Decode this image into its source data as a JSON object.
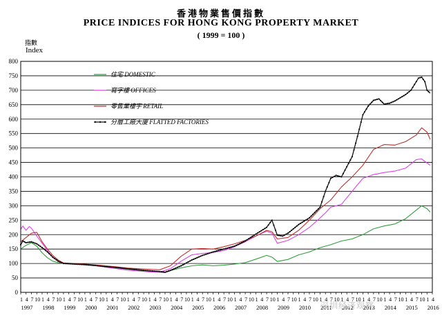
{
  "title_zh": "香港物業售價指數",
  "title_en": "PRICE INDICES FOR HONG KONG PROPERTY MARKET",
  "subtitle": "( 1999 = 100 )",
  "ylabel_zh": "指數",
  "ylabel_en": "Index",
  "watermark": "深圳经济观察",
  "chart_data": {
    "type": "line",
    "ylim": [
      0,
      800
    ],
    "yticks": [
      0,
      50,
      100,
      150,
      200,
      250,
      300,
      350,
      400,
      450,
      500,
      550,
      600,
      650,
      700,
      750,
      800
    ],
    "xlim": [
      1997.0,
      2016.25
    ],
    "years": [
      "1997",
      "1998",
      "1999",
      "2000",
      "2001",
      "2002",
      "2003",
      "2004",
      "2005",
      "2006",
      "2007",
      "2008",
      "2009",
      "2010",
      "2011",
      "2012",
      "2013",
      "2014",
      "2015",
      "2016"
    ],
    "quarter_labels": [
      "1",
      "4",
      "7",
      "10"
    ],
    "grid": true,
    "legend_position": "top-left",
    "series": [
      {
        "name": "住宅  DOMESTIC",
        "color": "#2e9e3a",
        "marker": "none",
        "x": [
          1997.0,
          1997.25,
          1997.5,
          1997.75,
          1998.0,
          1998.25,
          1998.5,
          1998.75,
          1999.0,
          1999.5,
          2000.0,
          2000.5,
          2001.0,
          2001.5,
          2002.0,
          2002.5,
          2003.0,
          2003.5,
          2003.75,
          2004.0,
          2004.5,
          2005.0,
          2005.5,
          2006.0,
          2006.5,
          2007.0,
          2007.5,
          2008.0,
          2008.5,
          2008.75,
          2009.0,
          2009.5,
          2010.0,
          2010.5,
          2011.0,
          2011.5,
          2012.0,
          2012.5,
          2013.0,
          2013.5,
          2014.0,
          2014.5,
          2015.0,
          2015.5,
          2015.75,
          2016.0,
          2016.15
        ],
        "y": [
          150,
          163,
          172,
          160,
          137,
          120,
          108,
          103,
          100,
          99,
          95,
          92,
          88,
          84,
          80,
          76,
          72,
          70,
          68,
          75,
          85,
          92,
          95,
          92,
          94,
          98,
          103,
          115,
          128,
          122,
          107,
          114,
          130,
          140,
          155,
          165,
          178,
          185,
          200,
          220,
          230,
          237,
          255,
          285,
          300,
          290,
          278
        ]
      },
      {
        "name": "寫字樓  OFFICES",
        "color": "#e040e8",
        "marker": "none",
        "x": [
          1997.0,
          1997.1,
          1997.25,
          1997.4,
          1997.5,
          1997.75,
          1998.0,
          1998.25,
          1998.5,
          1999.0,
          1999.5,
          2000.0,
          2000.5,
          2001.0,
          2001.5,
          2002.0,
          2002.5,
          2003.0,
          2003.5,
          2004.0,
          2004.5,
          2005.0,
          2005.5,
          2006.0,
          2006.5,
          2007.0,
          2007.5,
          2008.0,
          2008.5,
          2008.75,
          2009.0,
          2009.5,
          2010.0,
          2010.5,
          2011.0,
          2011.25,
          2011.5,
          2012.0,
          2012.5,
          2013.0,
          2013.5,
          2014.0,
          2014.5,
          2015.0,
          2015.5,
          2015.75,
          2016.0,
          2016.15
        ],
        "y": [
          218,
          230,
          215,
          228,
          222,
          195,
          170,
          145,
          120,
          102,
          99,
          96,
          92,
          87,
          82,
          77,
          74,
          71,
          70,
          82,
          108,
          130,
          135,
          138,
          145,
          158,
          175,
          195,
          212,
          205,
          170,
          180,
          200,
          225,
          258,
          275,
          295,
          305,
          350,
          395,
          408,
          415,
          420,
          430,
          460,
          462,
          448,
          440
        ]
      },
      {
        "name": "零售業樓宇  RETAIL",
        "color": "#c2302c",
        "marker": "none",
        "x": [
          1997.0,
          1997.25,
          1997.5,
          1997.75,
          1998.0,
          1998.25,
          1998.5,
          1998.75,
          1999.0,
          1999.5,
          2000.0,
          2000.5,
          2001.0,
          2001.5,
          2002.0,
          2002.5,
          2003.0,
          2003.5,
          2004.0,
          2004.5,
          2005.0,
          2005.5,
          2006.0,
          2006.5,
          2007.0,
          2007.5,
          2008.0,
          2008.5,
          2008.75,
          2009.0,
          2009.5,
          2010.0,
          2010.5,
          2011.0,
          2011.5,
          2012.0,
          2012.5,
          2013.0,
          2013.5,
          2014.0,
          2014.5,
          2015.0,
          2015.5,
          2015.75,
          2016.0,
          2016.15
        ],
        "y": [
          175,
          190,
          205,
          208,
          175,
          150,
          128,
          112,
          102,
          100,
          98,
          95,
          92,
          88,
          84,
          82,
          80,
          78,
          92,
          125,
          150,
          152,
          150,
          158,
          168,
          180,
          195,
          215,
          210,
          185,
          190,
          215,
          250,
          290,
          320,
          365,
          400,
          440,
          495,
          512,
          510,
          522,
          545,
          570,
          555,
          530
        ]
      },
      {
        "name": "分層工廠大廈  FLATTED FACTORIES",
        "color": "#101010",
        "marker": "dot",
        "x": [
          1997.0,
          1997.1,
          1997.25,
          1997.5,
          1997.75,
          1998.0,
          1998.25,
          1998.5,
          1998.75,
          1999.0,
          1999.5,
          2000.0,
          2000.5,
          2001.0,
          2001.5,
          2002.0,
          2002.5,
          2003.0,
          2003.5,
          2003.75,
          2004.0,
          2004.5,
          2005.0,
          2005.5,
          2006.0,
          2006.5,
          2007.0,
          2007.5,
          2008.0,
          2008.5,
          2008.75,
          2009.0,
          2009.25,
          2009.5,
          2010.0,
          2010.5,
          2011.0,
          2011.25,
          2011.5,
          2011.75,
          2012.0,
          2012.5,
          2012.75,
          2013.0,
          2013.25,
          2013.5,
          2013.75,
          2014.0,
          2014.25,
          2014.5,
          2015.0,
          2015.25,
          2015.5,
          2015.6,
          2015.75,
          2015.9,
          2016.0,
          2016.15
        ],
        "y": [
          165,
          178,
          172,
          175,
          168,
          155,
          140,
          122,
          108,
          100,
          98,
          96,
          93,
          89,
          86,
          82,
          78,
          75,
          72,
          70,
          76,
          92,
          112,
          128,
          140,
          150,
          160,
          178,
          202,
          225,
          250,
          198,
          195,
          205,
          235,
          258,
          295,
          350,
          395,
          405,
          400,
          470,
          540,
          615,
          645,
          665,
          670,
          652,
          655,
          663,
          685,
          700,
          730,
          742,
          745,
          730,
          700,
          690
        ]
      }
    ]
  }
}
